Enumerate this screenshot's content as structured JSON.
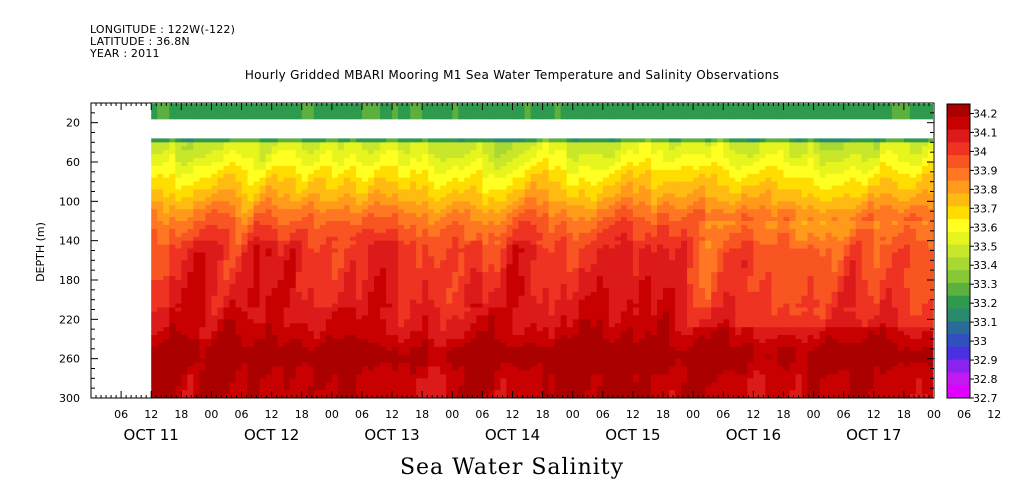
{
  "header": {
    "longitude": "LONGITUDE : 122W(-122)",
    "latitude": "LATITUDE : 36.8N",
    "year": "YEAR : 2011",
    "title": "Hourly Gridded MBARI Mooring M1 Sea Water Temperature and Salinity Observations"
  },
  "footer": {
    "title": "Sea Water Salinity"
  },
  "chart_data": {
    "type": "heatmap",
    "title": "Hourly Gridded MBARI Mooring M1 Sea Water Temperature and Salinity Observations",
    "xlabel": "",
    "ylabel": "DEPTH (m)",
    "bottom_title": "Sea Water Salinity",
    "x_hour_ticks": [
      "06",
      "12",
      "18",
      "00",
      "06",
      "12",
      "18",
      "00",
      "06",
      "12",
      "18",
      "00",
      "06",
      "12",
      "18",
      "00",
      "06",
      "12",
      "18",
      "00",
      "06",
      "12",
      "18",
      "00",
      "06",
      "12",
      "18",
      "00",
      "06",
      "12",
      "18"
    ],
    "x_day_labels": [
      "OCT 11",
      "OCT 12",
      "OCT 13",
      "OCT 14",
      "OCT 15",
      "OCT 16",
      "OCT 17"
    ],
    "x_range_hours": [
      0,
      168
    ],
    "data_start_hours": 12,
    "y_ticks": [
      20,
      60,
      100,
      140,
      180,
      220,
      260,
      300
    ],
    "ylim": [
      0,
      300
    ],
    "y_reversed": true,
    "colorbar_labels": [
      "34.2",
      "34.1",
      "34",
      "33.9",
      "33.8",
      "33.7",
      "33.6",
      "33.5",
      "33.4",
      "33.3",
      "33.2",
      "33.1",
      "33",
      "32.9",
      "32.8",
      "32.7"
    ],
    "colorbar_colors": [
      "#aa0000",
      "#c80000",
      "#dc1a1a",
      "#ee3322",
      "#f85522",
      "#ff7722",
      "#ff9a1a",
      "#ffbb11",
      "#ffdd00",
      "#ffff22",
      "#e6f51e",
      "#c8e62a",
      "#a8d832",
      "#88c836",
      "#5cb03e",
      "#2e9a4e",
      "#2a8a6e",
      "#2a6a9a",
      "#3050c0",
      "#4a30e0",
      "#8a22f0",
      "#c01af0",
      "#e000ff"
    ],
    "colorbar_range": [
      32.7,
      34.25
    ],
    "profile_depths": [
      10,
      38,
      45,
      60,
      70,
      80,
      90,
      100,
      110,
      120,
      130,
      140,
      150,
      175,
      200,
      215,
      230,
      240,
      250,
      260,
      270,
      280,
      290,
      300
    ],
    "profile_salinity": [
      33.22,
      null,
      33.5,
      33.57,
      33.63,
      33.68,
      33.73,
      33.78,
      33.85,
      33.9,
      33.95,
      33.98,
      34.02,
      34.04,
      34.07,
      34.1,
      34.13,
      34.16,
      34.22,
      34.24,
      34.2,
      34.17,
      34.17,
      34.16
    ],
    "gap_depth_range": [
      14,
      38
    ]
  }
}
